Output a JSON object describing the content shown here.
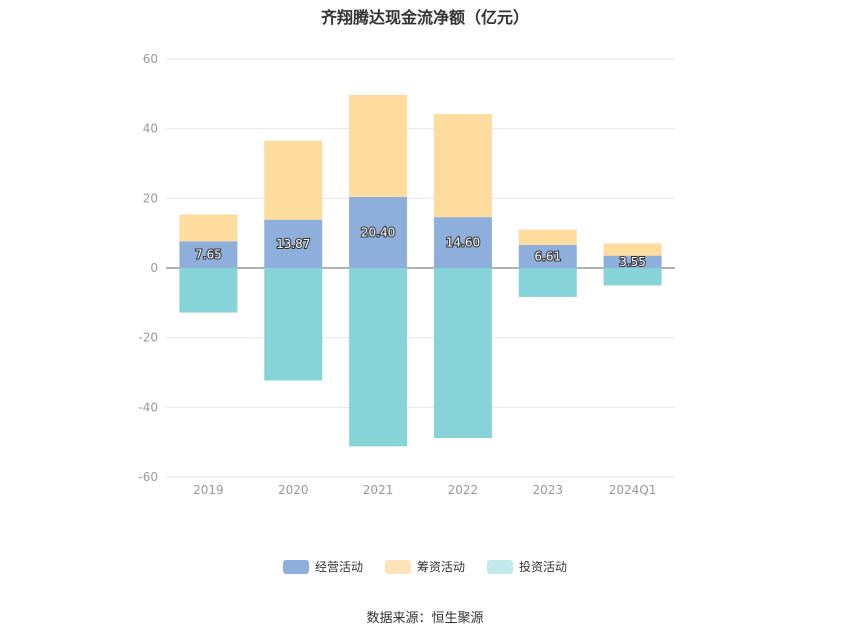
{
  "chart_data": {
    "type": "bar",
    "stacked": true,
    "title": "齐翔腾达现金流净额（亿元）",
    "categories": [
      "2019",
      "2020",
      "2021",
      "2022",
      "2023",
      "2024Q1"
    ],
    "series": [
      {
        "name": "经营活动",
        "color": "#8eaedb",
        "values": [
          7.65,
          13.87,
          20.4,
          14.6,
          6.61,
          3.55
        ],
        "labels": [
          "7.65",
          "13.87",
          "20.40",
          "14.60",
          "6.61",
          "3.55"
        ]
      },
      {
        "name": "筹资活动",
        "color": "#fddc9e",
        "values": [
          7.7,
          22.7,
          29.3,
          29.6,
          4.4,
          3.5
        ]
      },
      {
        "name": "投资活动",
        "color": "#86d4d8",
        "values": [
          -12.8,
          -32.3,
          -51.2,
          -48.8,
          -8.3,
          -5.0
        ]
      }
    ],
    "ylim": [
      -60,
      60
    ],
    "yticks": [
      60,
      40,
      20,
      0,
      -20,
      -40,
      -60
    ],
    "grid": true,
    "legend_position": "bottom"
  },
  "legend_colors": [
    "#8eaedb",
    "#fde4b8",
    "#c1e8ea"
  ],
  "source": "数据来源：恒生聚源"
}
